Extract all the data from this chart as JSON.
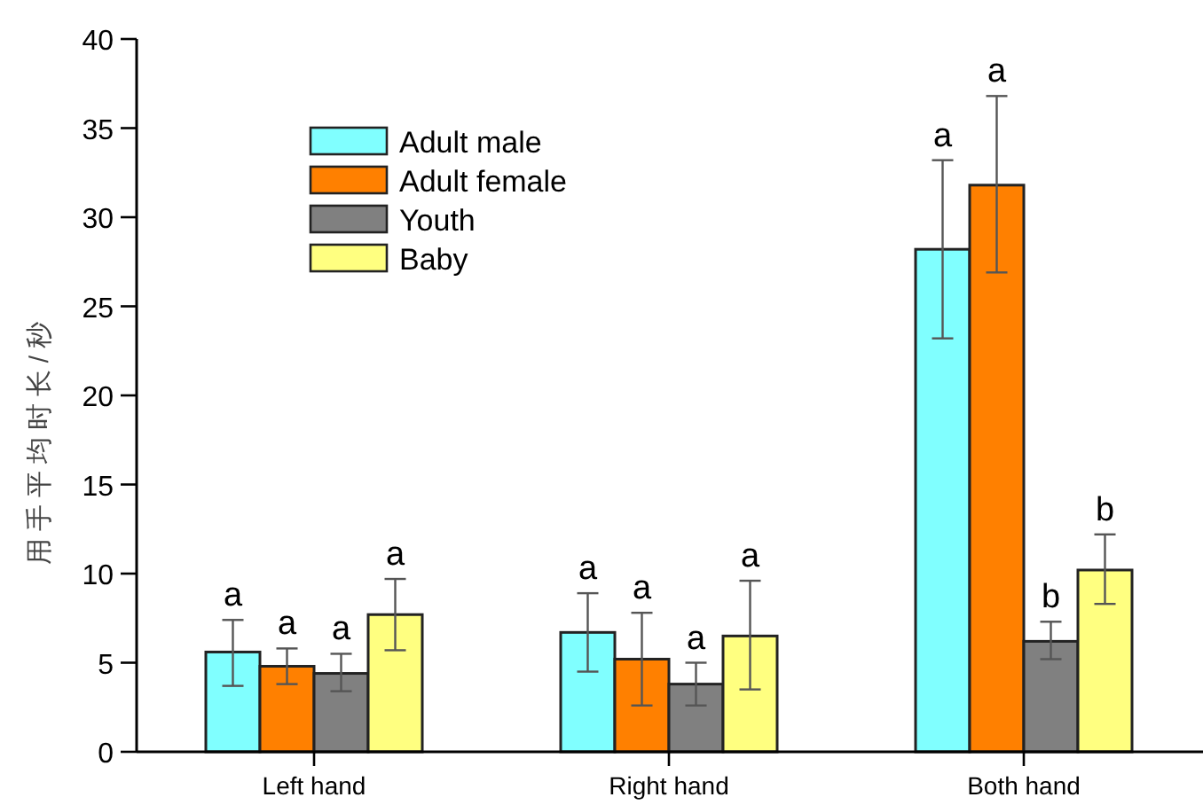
{
  "chart_data": {
    "type": "bar",
    "ylabel": "用手平均时长/秒",
    "categories": [
      "Left hand",
      "Right hand",
      "Both hand"
    ],
    "ylim": [
      0,
      40
    ],
    "yticks": [
      0,
      5,
      10,
      15,
      20,
      25,
      30,
      35,
      40
    ],
    "legend": "top left",
    "grid": false,
    "series": [
      {
        "name": "Adult male",
        "color": "#80ffff",
        "values": [
          5.6,
          6.7,
          28.2
        ],
        "errors": [
          [
            3.7,
            7.4
          ],
          [
            4.5,
            8.9
          ],
          [
            23.2,
            33.2
          ]
        ]
      },
      {
        "name": "Adult female",
        "color": "#ff8000",
        "values": [
          4.8,
          5.2,
          31.8
        ],
        "errors": [
          [
            3.8,
            5.8
          ],
          [
            2.6,
            7.8
          ],
          [
            26.9,
            36.8
          ]
        ]
      },
      {
        "name": "Youth",
        "color": "#808080",
        "values": [
          4.4,
          3.8,
          6.2
        ],
        "errors": [
          [
            3.4,
            5.5
          ],
          [
            2.6,
            5.0
          ],
          [
            5.2,
            7.3
          ]
        ]
      },
      {
        "name": "Baby",
        "color": "#ffff80",
        "values": [
          7.7,
          6.5,
          10.2
        ],
        "errors": [
          [
            5.7,
            9.7
          ],
          [
            3.5,
            9.6
          ],
          [
            8.3,
            12.2
          ]
        ]
      }
    ],
    "annotations": [
      "a",
      "a",
      "a",
      "a",
      "a",
      "a",
      "a",
      "a",
      "a",
      "a",
      "b",
      "b"
    ]
  }
}
